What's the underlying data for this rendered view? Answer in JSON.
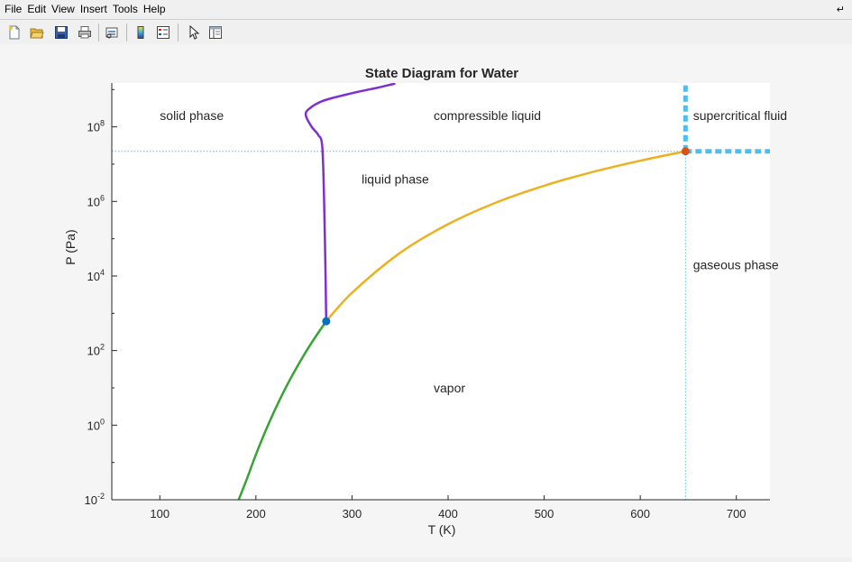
{
  "menu": [
    "File",
    "Edit",
    "View",
    "Insert",
    "Tools",
    "Help"
  ],
  "toolbar": [
    "new-figure-icon",
    "open-file-icon",
    "save-icon",
    "print-icon",
    "link-plot-icon",
    "colorbar-icon",
    "legend-icon",
    "pointer-icon",
    "property-inspector-icon"
  ],
  "colors": {
    "melting_curve": "#7e2fd0",
    "sublimation_curve": "#38a335",
    "vaporization_curve": "#edb120",
    "triple_point": "#0072bd",
    "critical_point": "#d95319",
    "critical_lines": "#4dbeee"
  },
  "chart_data": {
    "type": "line",
    "title": "State Diagram for Water",
    "xlabel": "T (K)",
    "ylabel": "P (Pa)",
    "xlim": [
      50,
      735
    ],
    "ylim": [
      0.01,
      1500000000
    ],
    "yscale": "log",
    "xticks": [
      "100",
      "200",
      "300",
      "400",
      "500",
      "600",
      "700"
    ],
    "yticks": [
      {
        "base": "10",
        "exp": "-2"
      },
      {
        "base": "10",
        "exp": "0"
      },
      {
        "base": "10",
        "exp": "2"
      },
      {
        "base": "10",
        "exp": "4"
      },
      {
        "base": "10",
        "exp": "6"
      },
      {
        "base": "10",
        "exp": "8"
      }
    ],
    "grid": false,
    "series": [
      {
        "key": "sublimation",
        "x": [
          182,
          190,
          200,
          210,
          220,
          230,
          240,
          250,
          260,
          273.16
        ],
        "y": [
          0.01,
          0.033,
          0.164,
          0.7,
          2.66,
          8.97,
          27.3,
          76.0,
          196,
          611.7
        ]
      },
      {
        "key": "vaporization",
        "x": [
          273.16,
          300,
          350,
          400,
          450,
          500,
          550,
          600,
          647.1
        ],
        "y": [
          611.7,
          3537,
          41680,
          245800,
          932500,
          2639000,
          6118000,
          12340000,
          22064000
        ]
      },
      {
        "key": "melting",
        "x": [
          273.16,
          272.5,
          271,
          269,
          265,
          258,
          252,
          255,
          270,
          300,
          325,
          345
        ],
        "y": [
          611.7,
          10000,
          1000000,
          30000000,
          60000000,
          100000000,
          200000000,
          300000000,
          500000000,
          800000000,
          1100000000,
          1450000000
        ]
      }
    ],
    "points": [
      {
        "key": "triple",
        "x": 273.16,
        "y": 611.7
      },
      {
        "key": "critical",
        "x": 647.1,
        "y": 22064000
      }
    ],
    "critical_lines": {
      "x": 647.1,
      "y": 22064000
    },
    "annotations": [
      {
        "text": "solid phase",
        "x": 100,
        "y": 200000000
      },
      {
        "text": "compressible liquid",
        "x": 385,
        "y": 200000000
      },
      {
        "text": "supercritical fluid",
        "x": 655,
        "y": 200000000
      },
      {
        "text": "liquid phase",
        "x": 310,
        "y": 4000000
      },
      {
        "text": "gaseous phase",
        "x": 655,
        "y": 20000
      },
      {
        "text": "vapor",
        "x": 385,
        "y": 10
      }
    ]
  }
}
